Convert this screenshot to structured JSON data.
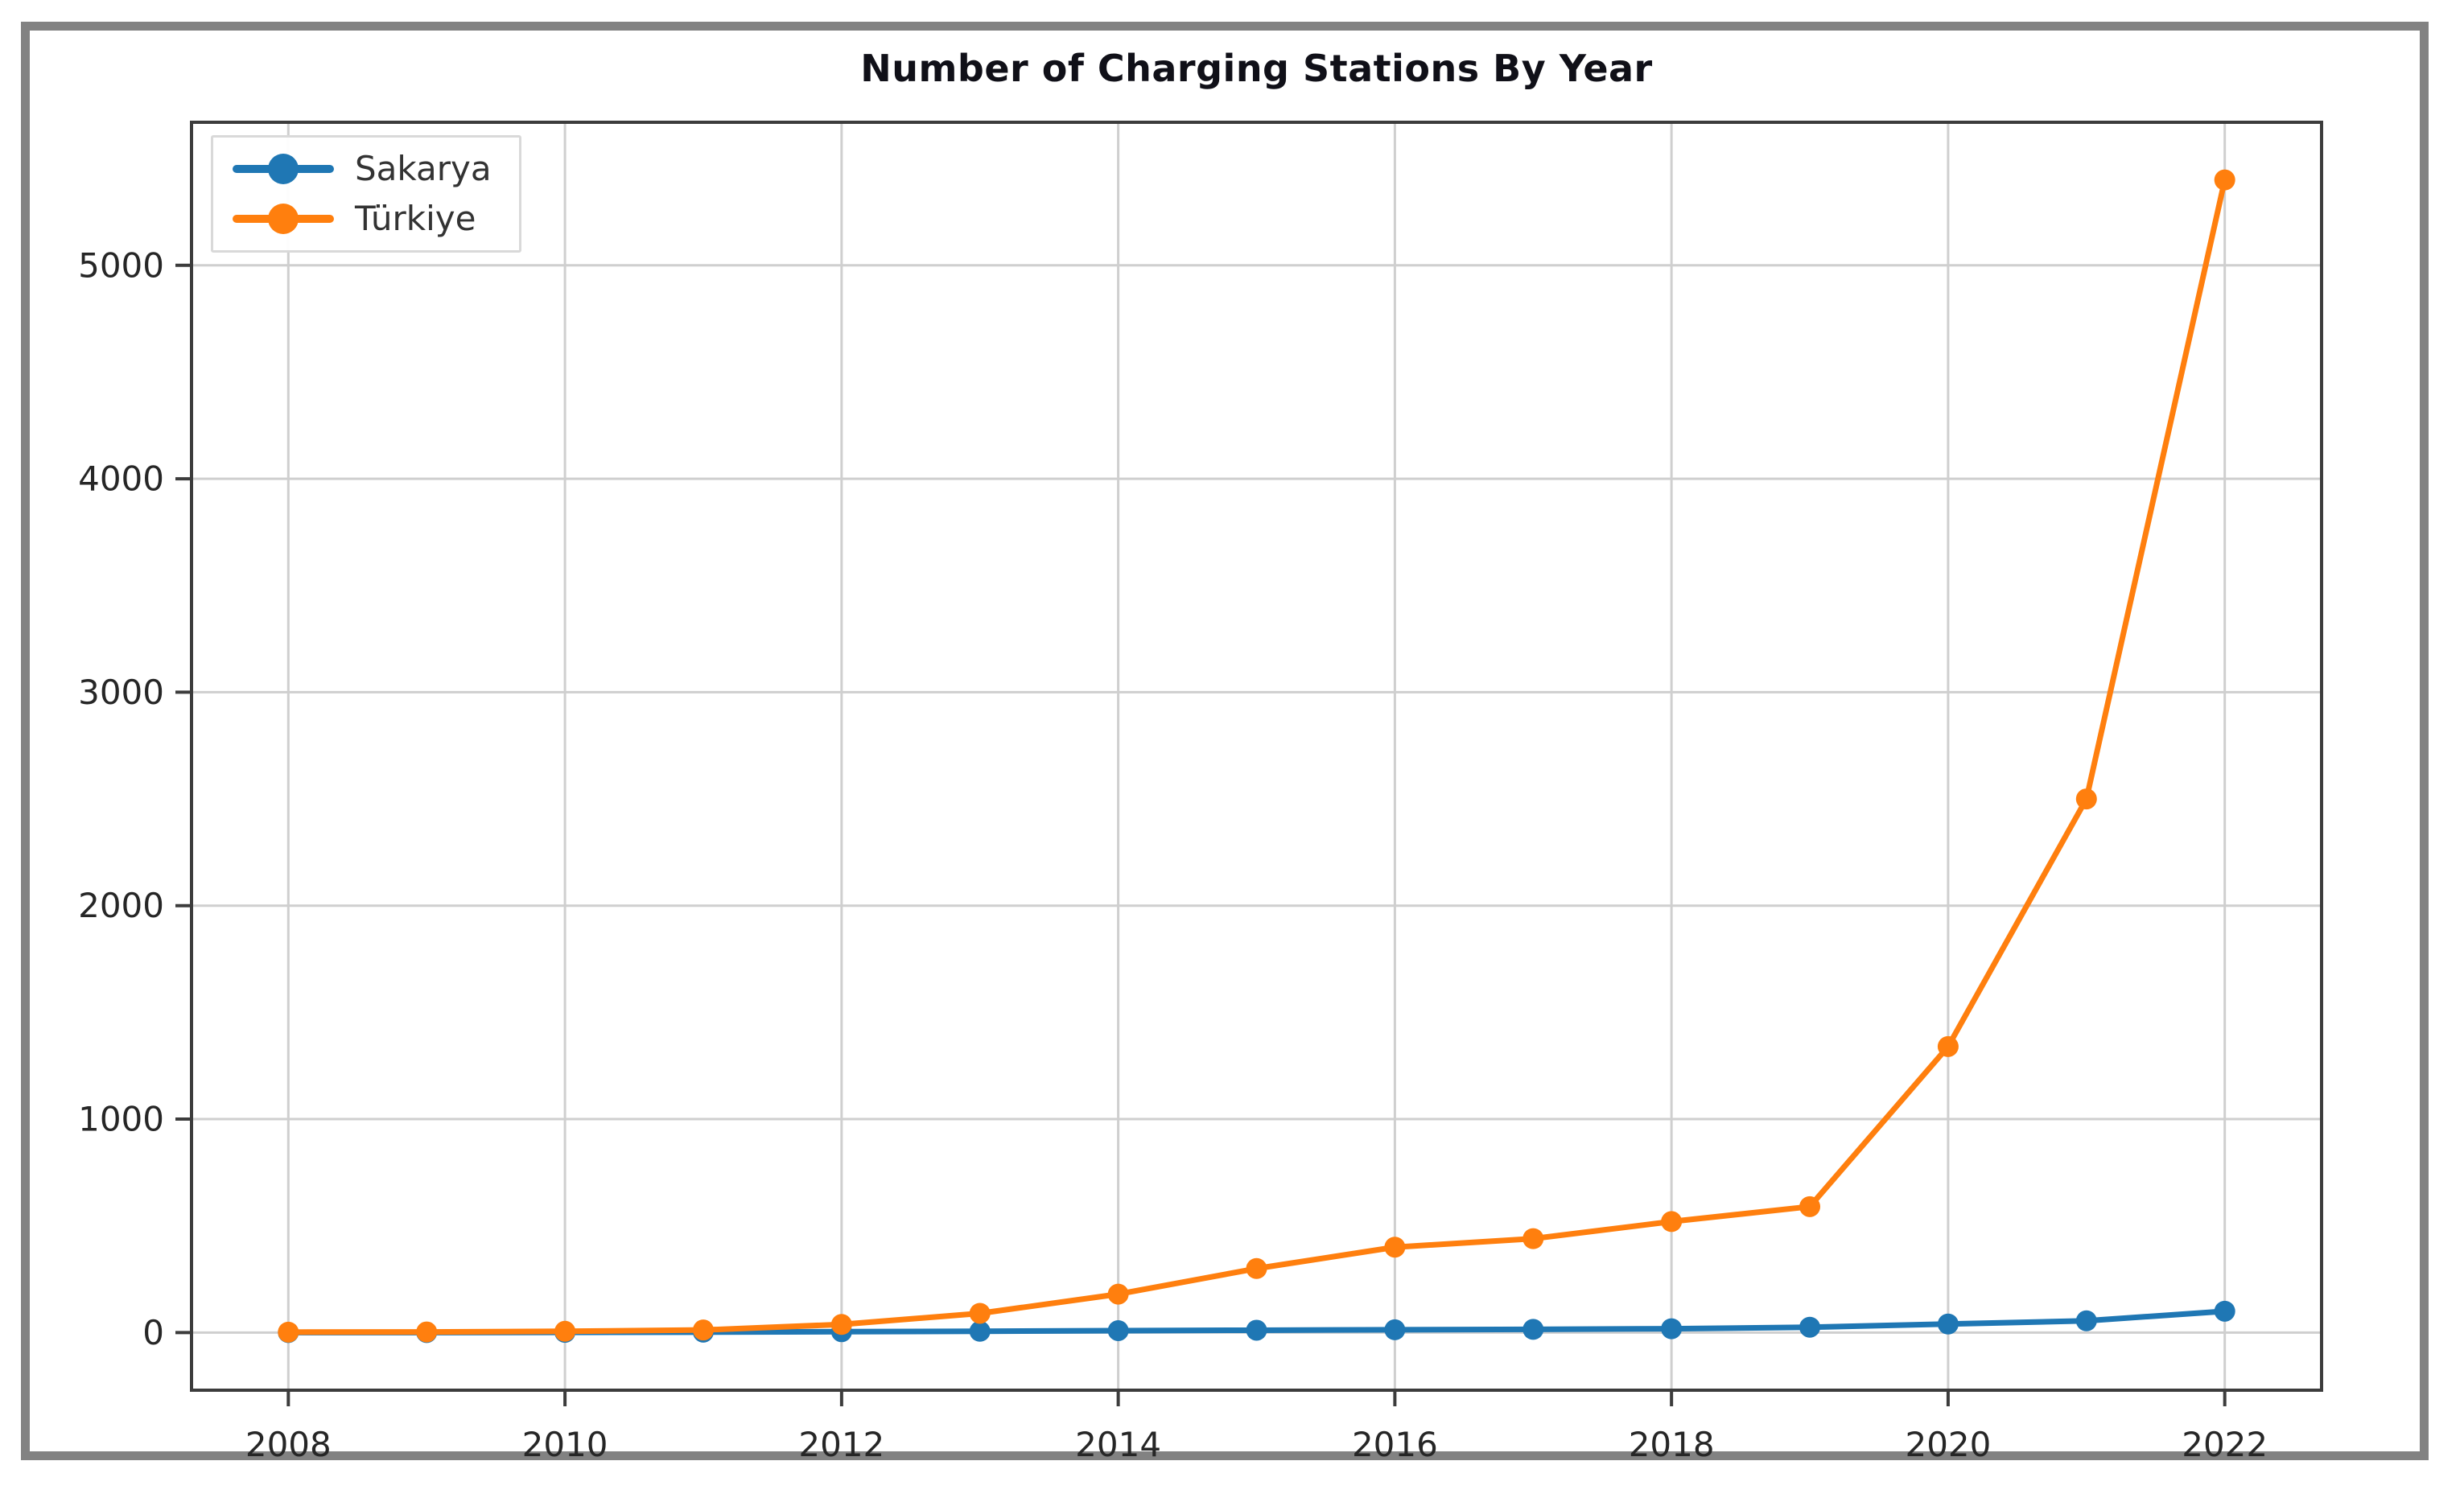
{
  "chart_data": {
    "type": "line",
    "title": "Number of Charging Stations By Year",
    "xlabel": "",
    "ylabel": "",
    "x": [
      2008,
      2009,
      2010,
      2011,
      2012,
      2013,
      2014,
      2015,
      2016,
      2017,
      2018,
      2019,
      2020,
      2021,
      2022
    ],
    "series": [
      {
        "name": "Sakarya",
        "color": "#1f77b4",
        "values": [
          0,
          0,
          1,
          2,
          4,
          6,
          9,
          11,
          13,
          15,
          18,
          25,
          40,
          55,
          100
        ]
      },
      {
        "name": "Türkiye",
        "color": "#ff7f0e",
        "values": [
          2,
          3,
          6,
          12,
          38,
          90,
          180,
          300,
          400,
          440,
          520,
          590,
          1340,
          2500,
          5400
        ]
      }
    ],
    "x_ticks": [
      2008,
      2010,
      2012,
      2014,
      2016,
      2018,
      2020,
      2022
    ],
    "y_ticks": [
      0,
      1000,
      2000,
      3000,
      4000,
      5000
    ],
    "xlim": [
      2007.3,
      2022.7
    ],
    "ylim": [
      -270,
      5670
    ],
    "grid": true,
    "legend_position": "upper left"
  },
  "colors": {
    "grid": "#cfcfcf",
    "axis": "#3c3c3c",
    "tick_label": "#262626",
    "title": "#101018",
    "figure_border": "#828282",
    "legend_border": "#d9d9d9",
    "legend_text": "#333333"
  }
}
